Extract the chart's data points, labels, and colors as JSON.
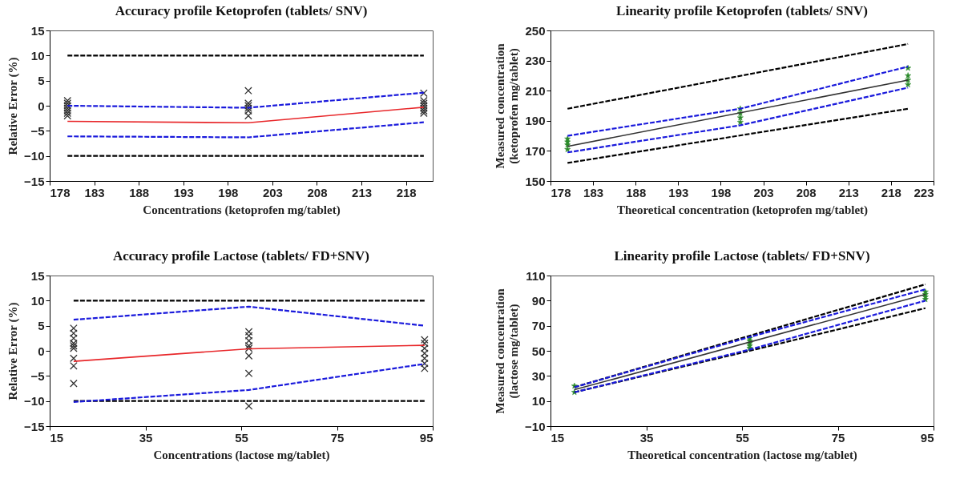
{
  "chart_data": [
    {
      "type": "line",
      "title": "Accuracy profile Ketoprofen (tablets/ SNV)",
      "xlabel": "Concentrations  (ketoprofen  mg/tablet)",
      "ylabel": "Relative  Error  (%)",
      "xlim": [
        178,
        221
      ],
      "xticks": [
        178,
        183,
        188,
        193,
        198,
        203,
        208,
        213,
        218
      ],
      "ylim": [
        -15,
        15
      ],
      "yticks": [
        -15,
        -10,
        -5,
        0,
        5,
        10,
        15
      ],
      "grid": false,
      "series": [
        {
          "type": "line",
          "color": "#000000",
          "line_style": "dashed",
          "x": [
            180,
            220
          ],
          "values": [
            10,
            10
          ]
        },
        {
          "type": "line",
          "color": "#000000",
          "line_style": "dashed",
          "x": [
            180,
            220
          ],
          "values": [
            -10,
            -10
          ]
        },
        {
          "type": "line",
          "color": "#1a1adc",
          "line_style": "dashed",
          "x": [
            180,
            200.3,
            220
          ],
          "values": [
            0,
            -0.4,
            2.6
          ]
        },
        {
          "type": "line",
          "color": "#1a1adc",
          "line_style": "dashed",
          "x": [
            180,
            200.3,
            220
          ],
          "values": [
            -6.1,
            -6.3,
            -3.3
          ]
        },
        {
          "type": "line",
          "color": "#e8272a",
          "line_style": "solid",
          "x": [
            180,
            200.3,
            220
          ],
          "values": [
            -3.1,
            -3.4,
            -0.3
          ]
        },
        {
          "type": "scatter",
          "color": "#333333",
          "marker": "cross",
          "x": [
            180,
            180,
            180,
            180,
            180,
            180,
            180,
            200.3,
            200.3,
            200.3,
            200.3,
            200.3,
            200.3,
            220,
            220,
            220,
            220,
            220,
            220,
            220
          ],
          "values": [
            1,
            0.5,
            0,
            -0.5,
            -1,
            -1.5,
            -2,
            3,
            0.5,
            0,
            -0.5,
            -1,
            -2,
            2.5,
            1,
            0.5,
            0,
            -0.5,
            -1,
            -1.5
          ]
        }
      ]
    },
    {
      "type": "line",
      "title": "Linearity profile Ketoprofen (tablets/ SNV)",
      "xlabel": "Theoretical  concentration  (ketoprofen  mg/tablet)",
      "ylabel": "Measured  concentration\n(ketoprofen  mg/tablet)",
      "xlim": [
        178,
        223
      ],
      "xticks": [
        178,
        183,
        188,
        193,
        198,
        203,
        208,
        213,
        218,
        223
      ],
      "ylim": [
        150,
        250
      ],
      "yticks": [
        150,
        170,
        190,
        210,
        230,
        250
      ],
      "grid": false,
      "series": [
        {
          "type": "line",
          "color": "#000000",
          "line_style": "dashed",
          "x": [
            180,
            220
          ],
          "values": [
            198,
            241
          ]
        },
        {
          "type": "line",
          "color": "#000000",
          "line_style": "dashed",
          "x": [
            180,
            220
          ],
          "values": [
            162,
            198
          ]
        },
        {
          "type": "line",
          "color": "#1a1adc",
          "line_style": "dashed",
          "x": [
            180,
            200.3,
            220
          ],
          "values": [
            180,
            198,
            226
          ]
        },
        {
          "type": "line",
          "color": "#1a1adc",
          "line_style": "dashed",
          "x": [
            180,
            200.3,
            220
          ],
          "values": [
            169,
            187,
            212
          ]
        },
        {
          "type": "line",
          "color": "#333333",
          "line_style": "solid",
          "x": [
            180,
            220
          ],
          "values": [
            173,
            217
          ]
        },
        {
          "type": "scatter",
          "color": "#2a8a2a",
          "marker": "star",
          "x": [
            180,
            180,
            180,
            180,
            200.3,
            200.3,
            200.3,
            200.3,
            220,
            220,
            220,
            220
          ],
          "values": [
            171,
            174,
            176,
            178,
            189,
            192,
            195,
            198,
            214,
            217,
            220,
            225
          ]
        }
      ]
    },
    {
      "type": "line",
      "title": "Accuracy profile Lactose (tablets/ FD+SNV)",
      "xlabel": "Concentrations  (lactose mg/tablet)",
      "ylabel": "Relative  Error  (%)",
      "xlim": [
        15,
        95
      ],
      "xticks": [
        15,
        35,
        55,
        75,
        95
      ],
      "ylim": [
        -15,
        15
      ],
      "yticks": [
        -15,
        -10,
        -5,
        0,
        5,
        10,
        15
      ],
      "grid": false,
      "series": [
        {
          "type": "line",
          "color": "#000000",
          "line_style": "dashed",
          "x": [
            20,
            93.3
          ],
          "values": [
            10,
            10
          ]
        },
        {
          "type": "line",
          "color": "#000000",
          "line_style": "dashed",
          "x": [
            20,
            93.3
          ],
          "values": [
            -10,
            -10
          ]
        },
        {
          "type": "line",
          "color": "#1a1adc",
          "line_style": "dashed",
          "x": [
            20,
            56.6,
            93.3
          ],
          "values": [
            6.2,
            8.8,
            5.0
          ]
        },
        {
          "type": "line",
          "color": "#1a1adc",
          "line_style": "dashed",
          "x": [
            20,
            56.6,
            93.3
          ],
          "values": [
            -10.2,
            -7.8,
            -2.6
          ]
        },
        {
          "type": "line",
          "color": "#e8272a",
          "line_style": "solid",
          "x": [
            20,
            56.6,
            93.3
          ],
          "values": [
            -2.1,
            0.4,
            1.1
          ]
        },
        {
          "type": "scatter",
          "color": "#333333",
          "marker": "cross",
          "x": [
            20,
            20,
            20,
            20,
            20,
            20,
            20,
            20,
            20,
            56.6,
            56.6,
            56.6,
            56.6,
            56.6,
            56.6,
            56.6,
            56.6,
            93.3,
            93.3,
            93.3,
            93.3,
            93.3,
            93.3,
            93.3
          ],
          "values": [
            4.5,
            3.5,
            2.5,
            1.5,
            1,
            0.5,
            -1.5,
            -3,
            -6.5,
            3.8,
            3,
            2,
            1,
            0.5,
            -1,
            -4.5,
            -11,
            2.2,
            1.5,
            0.5,
            -0.5,
            -1.5,
            -2.5,
            -3.5
          ]
        }
      ]
    },
    {
      "type": "line",
      "title": "Linearity profile Lactose (tablets/ FD+SNV)",
      "xlabel": "Theoretical  concentration  (lactose mg/tablet)",
      "ylabel": "Measured  concentration\n(lactose  mg/tablet)",
      "xlim": [
        15,
        95
      ],
      "xticks": [
        15,
        35,
        55,
        75,
        95
      ],
      "ylim": [
        -10,
        110
      ],
      "yticks": [
        -10,
        10,
        30,
        50,
        70,
        90,
        110
      ],
      "grid": false,
      "series": [
        {
          "type": "line",
          "color": "#000000",
          "line_style": "dashed",
          "x": [
            20,
            56.6,
            93.3
          ],
          "values": [
            21,
            62,
            103
          ]
        },
        {
          "type": "line",
          "color": "#000000",
          "line_style": "dashed",
          "x": [
            20,
            56.6,
            93.3
          ],
          "values": [
            17,
            50,
            84
          ]
        },
        {
          "type": "line",
          "color": "#1a1adc",
          "line_style": "dashed",
          "x": [
            20,
            56.6,
            93.3
          ],
          "values": [
            21,
            61,
            99
          ]
        },
        {
          "type": "line",
          "color": "#1a1adc",
          "line_style": "dashed",
          "x": [
            20,
            56.6,
            93.3
          ],
          "values": [
            17,
            51,
            90
          ]
        },
        {
          "type": "line",
          "color": "#333333",
          "line_style": "solid",
          "x": [
            20,
            93.3
          ],
          "values": [
            19,
            95
          ]
        },
        {
          "type": "scatter",
          "color": "#2a8a2a",
          "marker": "star",
          "x": [
            20,
            20,
            56.6,
            56.6,
            56.6,
            56.6,
            56.6,
            93.3,
            93.3,
            93.3,
            93.3
          ],
          "values": [
            17,
            22,
            52,
            54,
            56,
            58,
            60,
            91,
            93,
            95,
            97
          ]
        }
      ]
    }
  ]
}
